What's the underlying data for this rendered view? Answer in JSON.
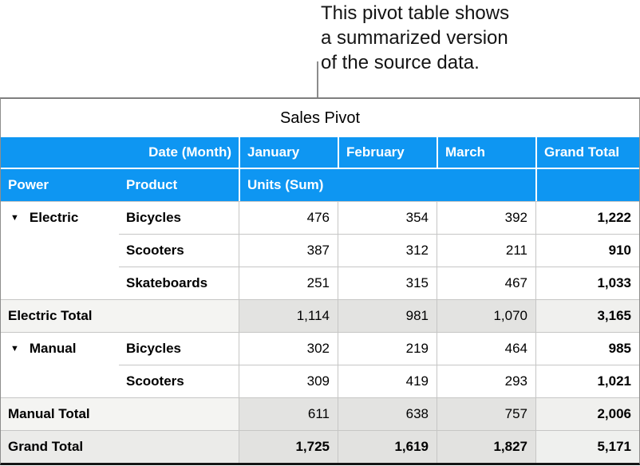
{
  "colors": {
    "header_blue": "#0e96f2",
    "header_text": "#ffffff",
    "gridline": "#c6c6c5",
    "outer_border": "#8e8e8d",
    "bottom_border": "#151515",
    "subtotal_label_bg": "#f4f4f2",
    "subtotal_value_bg": "#e3e3e1",
    "subtotal_grand_bg": "#f0f0ee",
    "grandtotal_label_bg": "#ebebe9",
    "annotation_line": "#8c8c8c"
  },
  "annotation": {
    "line1": "This pivot table shows",
    "line2": "a summarized version",
    "line3": "of the source data."
  },
  "icons": {
    "disclosure": "▼"
  },
  "table": {
    "title": "Sales Pivot",
    "header1": {
      "date_month": "Date (Month)",
      "jan": "January",
      "feb": "February",
      "mar": "March",
      "grand": "Grand Total"
    },
    "header2": {
      "power": "Power",
      "product": "Product",
      "units": "Units (Sum)"
    },
    "rows": [
      {
        "power": "Electric",
        "product": "Bicycles",
        "jan": "476",
        "feb": "354",
        "mar": "392",
        "grand": "1,222"
      },
      {
        "power": "",
        "product": "Scooters",
        "jan": "387",
        "feb": "312",
        "mar": "211",
        "grand": "910"
      },
      {
        "power": "",
        "product": "Skateboards",
        "jan": "251",
        "feb": "315",
        "mar": "467",
        "grand": "1,033"
      },
      {
        "label": "Electric Total",
        "jan": "1,114",
        "feb": "981",
        "mar": "1,070",
        "grand": "3,165"
      },
      {
        "power": "Manual",
        "product": "Bicycles",
        "jan": "302",
        "feb": "219",
        "mar": "464",
        "grand": "985"
      },
      {
        "power": "",
        "product": "Scooters",
        "jan": "309",
        "feb": "419",
        "mar": "293",
        "grand": "1,021"
      },
      {
        "label": "Manual Total",
        "jan": "611",
        "feb": "638",
        "mar": "757",
        "grand": "2,006"
      },
      {
        "label": "Grand Total",
        "jan": "1,725",
        "feb": "1,619",
        "mar": "1,827",
        "grand": "5,171"
      }
    ]
  }
}
